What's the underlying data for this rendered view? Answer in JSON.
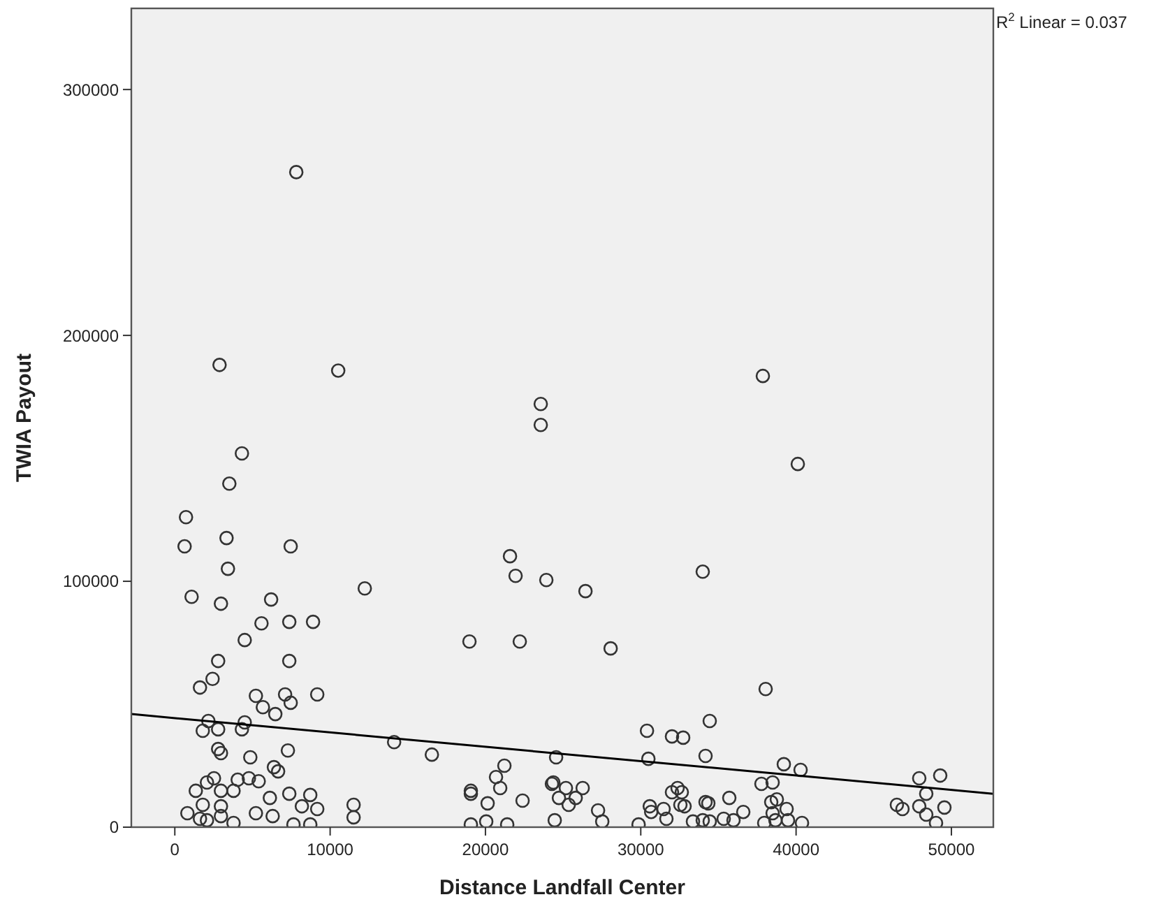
{
  "chart_data": {
    "type": "scatter",
    "xlabel": "Distance Landfall Center",
    "ylabel": "TWIA Payout",
    "xlim": [
      -2800,
      52700
    ],
    "ylim": [
      0,
      333000
    ],
    "xticks": [
      0,
      10000,
      20000,
      30000,
      40000,
      50000
    ],
    "yticks": [
      0,
      100000,
      200000,
      300000
    ],
    "grid": false,
    "marker": "circle",
    "annotations": [
      "R$^{2}$ Linear = 0.037"
    ],
    "series": [
      {
        "color": "#333333",
        "x": [
          7820,
          2880,
          10520,
          37860,
          23560,
          23560,
          4320,
          40110,
          3510,
          720,
          630,
          3330,
          7460,
          3420,
          21580,
          21940,
          23920,
          33990,
          1080,
          2970,
          6200,
          12230,
          26440,
          5580,
          7370,
          8900,
          4500,
          18970,
          22210,
          28060,
          7370,
          2790,
          2430,
          38040,
          1620,
          5220,
          7100,
          9170,
          7460,
          5670,
          6470,
          4500,
          34440,
          2160,
          1800,
          2790,
          4320,
          30400,
          32010,
          32730,
          14120,
          16550,
          24550,
          30490,
          34170,
          39210,
          40290,
          21220,
          47930,
          49280,
          2790,
          2970,
          7280,
          4860,
          6380,
          6650,
          1350,
          810,
          2070,
          1800,
          2520,
          2970,
          2970,
          3780,
          3780,
          4050,
          4770,
          5400,
          6120,
          5220,
          6300,
          7370,
          8180,
          8720,
          9170,
          7640,
          8720,
          11510,
          11510,
          2070,
          1620,
          2970,
          19060,
          19060,
          19060,
          20140,
          20050,
          20680,
          20950,
          21400,
          22390,
          24370,
          24460,
          24280,
          25180,
          24730,
          25360,
          25810,
          26260,
          27250,
          27520,
          29860,
          30580,
          30670,
          31470,
          31650,
          32010,
          32640,
          32550,
          32820,
          33360,
          34170,
          34350,
          33990,
          34440,
          35340,
          35700,
          35970,
          36600,
          37950,
          38490,
          38400,
          38760,
          38490,
          38670,
          39390,
          39480,
          40380,
          46490,
          46850,
          48380,
          47930,
          48380,
          49010,
          49550,
          37770,
          32370
        ],
        "values": [
          266400,
          188000,
          185700,
          183500,
          172100,
          163600,
          152000,
          147700,
          139700,
          126100,
          114200,
          117600,
          114200,
          105100,
          110200,
          102200,
          100500,
          103900,
          93700,
          90900,
          92600,
          97100,
          96000,
          82900,
          83500,
          83500,
          76100,
          75500,
          75500,
          72700,
          67600,
          67600,
          60300,
          56200,
          56800,
          53400,
          54000,
          54000,
          50600,
          48800,
          46000,
          42600,
          43200,
          43200,
          39200,
          39800,
          39800,
          39200,
          36900,
          36400,
          34600,
          29500,
          28400,
          27800,
          29000,
          25600,
          23300,
          25000,
          19900,
          21000,
          31800,
          30100,
          31200,
          28400,
          24400,
          22700,
          14800,
          5700,
          18200,
          9100,
          19900,
          14800,
          8500,
          14800,
          1700,
          19300,
          19900,
          18700,
          11900,
          5700,
          4500,
          13600,
          8500,
          13100,
          7400,
          1100,
          1100,
          9100,
          4000,
          2800,
          3400,
          4500,
          14800,
          13600,
          1100,
          9700,
          2300,
          20400,
          15900,
          1100,
          10800,
          18200,
          2800,
          17600,
          15900,
          11900,
          9100,
          11900,
          15900,
          6800,
          2300,
          1100,
          8500,
          6200,
          7400,
          3400,
          14200,
          14200,
          9100,
          8500,
          2300,
          10200,
          9700,
          2800,
          2300,
          3400,
          11900,
          2800,
          6200,
          1700,
          18200,
          10200,
          11300,
          5700,
          2800,
          7400,
          2800,
          1700,
          9100,
          7400,
          13600,
          8500,
          5100,
          1700,
          8000,
          17600,
          15900
        ]
      },
      {
        "type": "line",
        "marker": "none",
        "color": "#000000",
        "x": [
          -2800,
          52700
        ],
        "values": [
          46000,
          13600
        ]
      }
    ]
  }
}
